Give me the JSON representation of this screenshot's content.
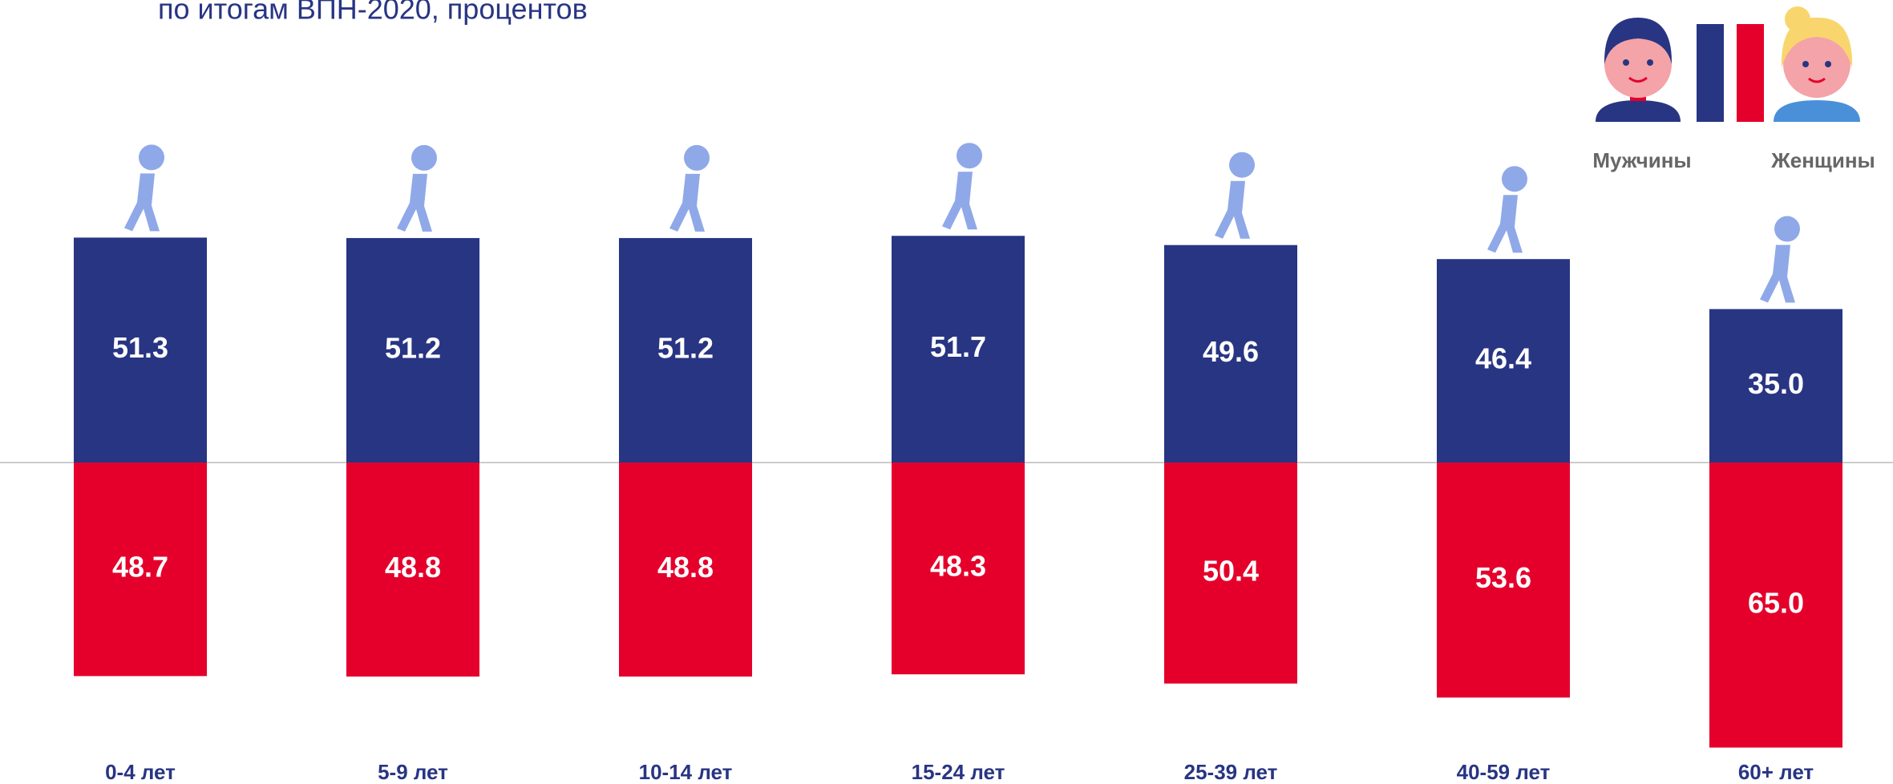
{
  "chart_data": {
    "type": "diverging-bar",
    "title": "по итогам ВПН-2020, процентов",
    "categories": [
      "0-4 лет",
      "5-9 лет",
      "10-14 лет",
      "15-24 лет",
      "25-39 лет",
      "40-59 лет",
      "60+ лет"
    ],
    "series": [
      {
        "name": "Мужчины",
        "color": "#283583",
        "values": [
          51.3,
          51.2,
          51.2,
          51.7,
          49.6,
          46.4,
          35.0
        ],
        "value_labels": [
          "51.3",
          "51.2",
          "51.2",
          "51.7",
          "49.6",
          "46.4",
          "35.0"
        ]
      },
      {
        "name": "Женщины",
        "color": "#e4002b",
        "values": [
          48.7,
          48.8,
          48.8,
          48.3,
          50.4,
          53.6,
          65.0
        ],
        "value_labels": [
          "48.7",
          "48.8",
          "48.8",
          "48.3",
          "50.4",
          "53.6",
          "65.0"
        ]
      }
    ]
  }
}
